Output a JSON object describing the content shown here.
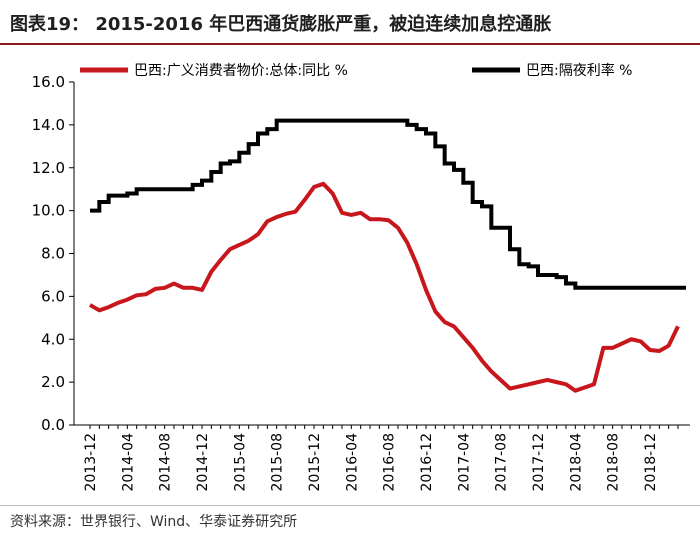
{
  "header": {
    "title": "图表19：  2015-2016 年巴西通货膨胀严重，被迫连续加息控通胀"
  },
  "source": {
    "text": "资料来源：世界银行、Wind、华泰证券研究所"
  },
  "chart_data": {
    "type": "line",
    "title": "",
    "xlabel": "",
    "ylabel": "",
    "ylim": [
      0,
      16
    ],
    "yticks": [
      "0.0",
      "2.0",
      "4.0",
      "6.0",
      "8.0",
      "10.0",
      "12.0",
      "14.0",
      "16.0"
    ],
    "xticks": [
      "2013-12",
      "2014-04",
      "2014-08",
      "2014-12",
      "2015-04",
      "2015-08",
      "2015-12",
      "2016-04",
      "2016-08",
      "2016-12",
      "2017-04",
      "2017-08",
      "2017-12",
      "2018-04",
      "2018-08",
      "2018-12"
    ],
    "x": [
      "2013-12",
      "2014-01",
      "2014-02",
      "2014-03",
      "2014-04",
      "2014-05",
      "2014-06",
      "2014-07",
      "2014-08",
      "2014-09",
      "2014-10",
      "2014-11",
      "2014-12",
      "2015-01",
      "2015-02",
      "2015-03",
      "2015-04",
      "2015-05",
      "2015-06",
      "2015-07",
      "2015-08",
      "2015-09",
      "2015-10",
      "2015-11",
      "2015-12",
      "2016-01",
      "2016-02",
      "2016-03",
      "2016-04",
      "2016-05",
      "2016-06",
      "2016-07",
      "2016-08",
      "2016-09",
      "2016-10",
      "2016-11",
      "2016-12",
      "2017-01",
      "2017-02",
      "2017-03",
      "2017-04",
      "2017-05",
      "2017-06",
      "2017-07",
      "2017-08",
      "2017-09",
      "2017-10",
      "2017-11",
      "2017-12",
      "2018-01",
      "2018-02",
      "2018-03",
      "2018-04",
      "2018-05",
      "2018-06",
      "2018-07",
      "2018-08",
      "2018-09",
      "2018-10",
      "2018-11",
      "2018-12",
      "2019-01",
      "2019-02",
      "2019-03"
    ],
    "legend_position": "top",
    "grid": false,
    "series": [
      {
        "name": "巴西:广义消费者物价:总体:同比 %",
        "color": "#c8161d",
        "step": false,
        "values": [
          5.6,
          5.35,
          5.5,
          5.7,
          5.85,
          6.05,
          6.1,
          6.35,
          6.4,
          6.6,
          6.4,
          6.4,
          6.3,
          7.15,
          7.7,
          8.2,
          8.4,
          8.6,
          8.9,
          9.5,
          9.7,
          9.85,
          9.95,
          10.5,
          11.1,
          11.25,
          10.8,
          9.9,
          9.8,
          9.9,
          9.6,
          9.6,
          9.55,
          9.2,
          8.5,
          7.5,
          6.3,
          5.3,
          4.8,
          4.6,
          4.1,
          3.6,
          3.0,
          2.5,
          2.1,
          1.7,
          1.8,
          1.9,
          2.0,
          2.1,
          2.0,
          1.9,
          1.6,
          1.75,
          1.9,
          3.6,
          3.6,
          3.8,
          4.0,
          3.9,
          3.5,
          3.45,
          3.7,
          4.6
        ]
      },
      {
        "name": "巴西:隔夜利率 %",
        "color": "#000000",
        "step": true,
        "values": [
          10.0,
          10.4,
          10.7,
          10.7,
          10.8,
          11.0,
          11.0,
          11.0,
          11.0,
          11.0,
          11.0,
          11.2,
          11.4,
          11.8,
          12.2,
          12.3,
          12.7,
          13.1,
          13.6,
          13.8,
          14.2,
          14.2,
          14.2,
          14.2,
          14.2,
          14.2,
          14.2,
          14.2,
          14.2,
          14.2,
          14.2,
          14.2,
          14.2,
          14.2,
          14.0,
          13.8,
          13.6,
          13.0,
          12.2,
          11.9,
          11.3,
          10.4,
          10.2,
          9.2,
          9.2,
          8.2,
          7.5,
          7.4,
          7.0,
          7.0,
          6.9,
          6.6,
          6.4,
          6.4,
          6.4,
          6.4,
          6.4,
          6.4,
          6.4,
          6.4,
          6.4,
          6.4,
          6.4,
          6.4
        ]
      }
    ]
  }
}
